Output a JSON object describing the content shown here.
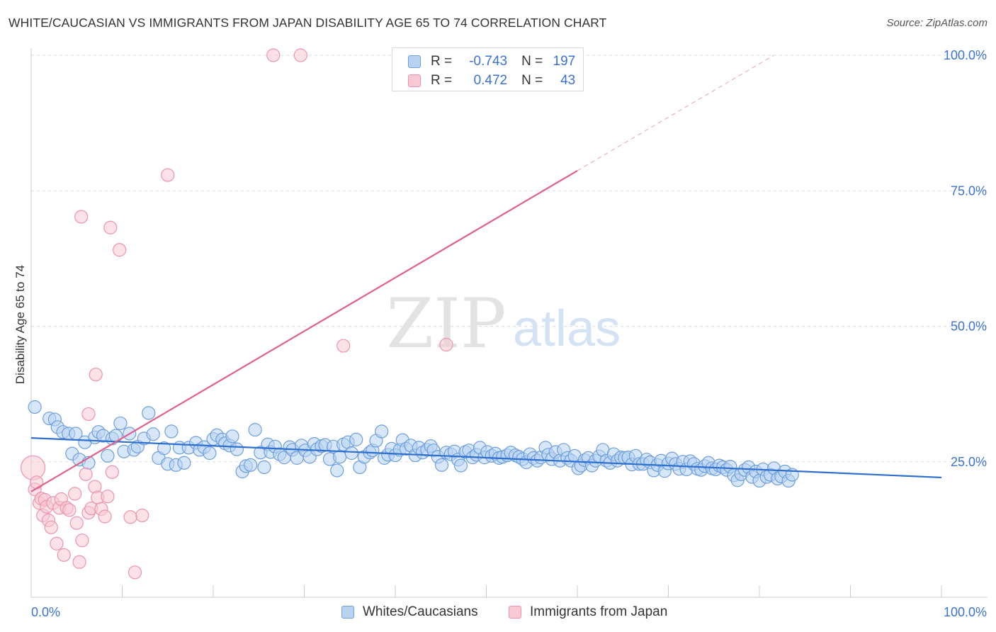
{
  "title": "WHITE/CAUCASIAN VS IMMIGRANTS FROM JAPAN DISABILITY AGE 65 TO 74 CORRELATION CHART",
  "source": "Source: ZipAtlas.com",
  "watermark": {
    "zip": "ZIP",
    "atlas": "atlas"
  },
  "colors": {
    "white_fill": "#b8d3f2",
    "white_stroke": "#6d9fdc",
    "white_line": "#2f6fce",
    "japan_fill": "#f8c8d6",
    "japan_stroke": "#ec93ae",
    "japan_line": "#e0608a",
    "axis_text": "#3b72d2",
    "grid": "#dddddd"
  },
  "stats": {
    "r_label": "R =",
    "n_label": "N =",
    "white": {
      "r": "-0.743",
      "n": "197"
    },
    "japan": {
      "r": "0.472",
      "n": "43"
    }
  },
  "legend": {
    "white": "Whites/Caucasians",
    "japan": "Immigrants from Japan"
  },
  "chart_data": {
    "type": "scatter",
    "title": "WHITE/CAUCASIAN VS IMMIGRANTS FROM JAPAN DISABILITY AGE 65 TO 74 CORRELATION CHART",
    "xlabel": "",
    "ylabel": "Disability Age 65 to 74",
    "xlim": [
      0,
      100
    ],
    "ylim": [
      0,
      100
    ],
    "x_tick_labels": [
      "0.0%",
      "100.0%"
    ],
    "y_ticks": [
      25,
      50,
      75,
      100
    ],
    "y_tick_labels": [
      "25.0%",
      "50.0%",
      "75.0%",
      "100.0%"
    ],
    "grid": true,
    "legend_position": "bottom",
    "series": [
      {
        "name": "Whites/Caucasians",
        "r": -0.743,
        "n": 197,
        "trend": {
          "x": [
            0,
            100
          ],
          "y": [
            29.4,
            22.1
          ]
        },
        "points": [
          [
            0.4,
            35.1
          ],
          [
            2,
            33
          ],
          [
            2.6,
            32.8
          ],
          [
            2.9,
            31.4
          ],
          [
            3.5,
            30.5
          ],
          [
            4.1,
            30.2
          ],
          [
            4.5,
            26.5
          ],
          [
            4.9,
            30.2
          ],
          [
            5.3,
            25.4
          ],
          [
            5.9,
            28.6
          ],
          [
            6.3,
            24.8
          ],
          [
            7,
            29.5
          ],
          [
            7.4,
            30.5
          ],
          [
            7.9,
            29.8
          ],
          [
            8.4,
            26.1
          ],
          [
            8.9,
            29.3
          ],
          [
            9.3,
            29.8
          ],
          [
            9.8,
            32.1
          ],
          [
            10.2,
            26.9
          ],
          [
            10.8,
            30.2
          ],
          [
            11.3,
            27.2
          ],
          [
            11.7,
            27.8
          ],
          [
            12.4,
            29.3
          ],
          [
            12.9,
            34
          ],
          [
            13.4,
            30.1
          ],
          [
            14,
            25.7
          ],
          [
            14.6,
            27.5
          ],
          [
            15,
            24.6
          ],
          [
            15.4,
            30.6
          ],
          [
            15.9,
            24.4
          ],
          [
            16.3,
            27.6
          ],
          [
            16.8,
            24.8
          ],
          [
            17.3,
            27.6
          ],
          [
            18.1,
            28.5
          ],
          [
            18.5,
            27.2
          ],
          [
            19,
            27.7
          ],
          [
            19.6,
            26.6
          ],
          [
            20,
            29.2
          ],
          [
            20.4,
            29.9
          ],
          [
            21,
            29.1
          ],
          [
            21.3,
            28.4
          ],
          [
            21.8,
            28
          ],
          [
            22.1,
            29.7
          ],
          [
            22.6,
            27.3
          ],
          [
            23.2,
            23.2
          ],
          [
            23.6,
            24.2
          ],
          [
            24.1,
            24.4
          ],
          [
            24.6,
            30.9
          ],
          [
            25.2,
            26.7
          ],
          [
            25.6,
            24
          ],
          [
            26,
            28.2
          ],
          [
            26.3,
            26.8
          ],
          [
            26.8,
            27.8
          ],
          [
            27.3,
            26.4
          ],
          [
            27.8,
            25.8
          ],
          [
            28.4,
            27.7
          ],
          [
            28.7,
            27.2
          ],
          [
            29.2,
            25.7
          ],
          [
            29.7,
            28
          ],
          [
            30.1,
            27.1
          ],
          [
            30.6,
            25.9
          ],
          [
            31.1,
            28.3
          ],
          [
            31.4,
            27.3
          ],
          [
            31.9,
            27.9
          ],
          [
            32.3,
            28.1
          ],
          [
            32.8,
            25.5
          ],
          [
            33.2,
            27.8
          ],
          [
            33.6,
            23.4
          ],
          [
            33.9,
            25.9
          ],
          [
            34.3,
            28.2
          ],
          [
            34.8,
            28.6
          ],
          [
            35.2,
            26.6
          ],
          [
            35.7,
            29.1
          ],
          [
            36.1,
            24
          ],
          [
            36.6,
            25.9
          ],
          [
            37.2,
            26.7
          ],
          [
            37.5,
            27.1
          ],
          [
            37.9,
            28.9
          ],
          [
            38.5,
            30.6
          ],
          [
            38.8,
            25.7
          ],
          [
            39.2,
            26.3
          ],
          [
            39.6,
            27.4
          ],
          [
            40,
            26.2
          ],
          [
            40.5,
            27.2
          ],
          [
            40.8,
            29
          ],
          [
            41.2,
            27.4
          ],
          [
            41.7,
            28
          ],
          [
            42.2,
            26.2
          ],
          [
            42.6,
            27.6
          ],
          [
            43,
            26.7
          ],
          [
            43.5,
            27.2
          ],
          [
            43.9,
            27.9
          ],
          [
            44.2,
            27.1
          ],
          [
            44.7,
            25.9
          ],
          [
            45.1,
            24.4
          ],
          [
            45.6,
            26.7
          ],
          [
            46.1,
            26.4
          ],
          [
            46.5,
            26.9
          ],
          [
            46.9,
            25.4
          ],
          [
            47.2,
            24.3
          ],
          [
            47.7,
            26.8
          ],
          [
            48.1,
            27.1
          ],
          [
            48.5,
            25.8
          ],
          [
            48.9,
            26.3
          ],
          [
            49.3,
            27.6
          ],
          [
            49.8,
            25.8
          ],
          [
            50.1,
            26.8
          ],
          [
            50.6,
            26.1
          ],
          [
            51,
            26.5
          ],
          [
            51.4,
            25.7
          ],
          [
            51.8,
            25.9
          ],
          [
            52.3,
            26.2
          ],
          [
            52.7,
            26.7
          ],
          [
            53.2,
            26.2
          ],
          [
            53.6,
            25.9
          ],
          [
            54,
            25.5
          ],
          [
            54.4,
            24.9
          ],
          [
            54.8,
            26.4
          ],
          [
            55.2,
            25.7
          ],
          [
            55.6,
            25.2
          ],
          [
            56,
            25.8
          ],
          [
            56.5,
            27.6
          ],
          [
            56.8,
            26.3
          ],
          [
            57.2,
            25.5
          ],
          [
            57.6,
            26.8
          ],
          [
            58.1,
            25.2
          ],
          [
            58.5,
            27.2
          ],
          [
            58.9,
            25.7
          ],
          [
            59.3,
            25.2
          ],
          [
            59.7,
            26.1
          ],
          [
            60.1,
            23.8
          ],
          [
            60.4,
            24.3
          ],
          [
            60.8,
            25.3
          ],
          [
            61.2,
            25.7
          ],
          [
            61.6,
            24.3
          ],
          [
            62,
            25.2
          ],
          [
            62.4,
            26
          ],
          [
            62.8,
            27.2
          ],
          [
            63.2,
            25.2
          ],
          [
            63.6,
            24.8
          ],
          [
            64,
            26.4
          ],
          [
            64.4,
            25.2
          ],
          [
            64.8,
            25.8
          ],
          [
            65.2,
            25.7
          ],
          [
            65.6,
            25.8
          ],
          [
            66,
            24.5
          ],
          [
            66.4,
            26.1
          ],
          [
            66.8,
            24.6
          ],
          [
            67.2,
            24.6
          ],
          [
            67.6,
            25.4
          ],
          [
            68,
            24.9
          ],
          [
            68.4,
            23.4
          ],
          [
            68.8,
            24.4
          ],
          [
            69.2,
            25.2
          ],
          [
            69.6,
            23.3
          ],
          [
            70,
            24.7
          ],
          [
            70.4,
            25.6
          ],
          [
            70.8,
            24.6
          ],
          [
            71.2,
            23.7
          ],
          [
            71.6,
            25
          ],
          [
            72,
            23.6
          ],
          [
            72.4,
            25.1
          ],
          [
            72.8,
            24.6
          ],
          [
            73.2,
            23.7
          ],
          [
            73.6,
            23.5
          ],
          [
            74,
            24.2
          ],
          [
            74.4,
            24.8
          ],
          [
            74.8,
            23.8
          ],
          [
            75.2,
            23.6
          ],
          [
            75.6,
            24.3
          ],
          [
            76,
            24
          ],
          [
            76.4,
            23.5
          ],
          [
            76.8,
            24.1
          ],
          [
            77.2,
            22.5
          ],
          [
            77.6,
            21.6
          ],
          [
            78,
            22.7
          ],
          [
            78.4,
            23.5
          ],
          [
            78.8,
            24
          ],
          [
            79.2,
            22.2
          ],
          [
            79.6,
            23.2
          ],
          [
            80,
            21.5
          ],
          [
            80.4,
            23.6
          ],
          [
            80.8,
            22.2
          ],
          [
            81.2,
            22.6
          ],
          [
            81.6,
            23.8
          ],
          [
            82,
            21.9
          ],
          [
            82.4,
            22.3
          ],
          [
            82.8,
            23.2
          ],
          [
            83.2,
            21.5
          ],
          [
            83.6,
            22.6
          ]
        ]
      },
      {
        "name": "Immigrants from Japan",
        "r": 0.472,
        "n": 43,
        "trend": {
          "x": [
            0,
            60
          ],
          "y": [
            19.5,
            78.7
          ]
        },
        "points": [
          [
            0.2,
            23.9
          ],
          [
            0.4,
            19.9
          ],
          [
            0.6,
            21.2
          ],
          [
            0.9,
            17.4
          ],
          [
            1.1,
            18.2
          ],
          [
            1.3,
            15.1
          ],
          [
            1.5,
            18
          ],
          [
            1.7,
            16.7
          ],
          [
            1.9,
            14.2
          ],
          [
            2.2,
            12.9
          ],
          [
            2.4,
            17.4
          ],
          [
            2.8,
            9.9
          ],
          [
            3.1,
            16.5
          ],
          [
            3.3,
            18.1
          ],
          [
            3.6,
            7.8
          ],
          [
            3.9,
            16.5
          ],
          [
            4.2,
            16.1
          ],
          [
            4.8,
            19.1
          ],
          [
            5,
            13.7
          ],
          [
            5.3,
            6.5
          ],
          [
            5.6,
            10.5
          ],
          [
            6,
            22.7
          ],
          [
            6.3,
            15.6
          ],
          [
            6.6,
            16.4
          ],
          [
            7,
            20.4
          ],
          [
            7.3,
            18.4
          ],
          [
            7.7,
            16.3
          ],
          [
            8.1,
            14.9
          ],
          [
            8.4,
            18.6
          ],
          [
            8.9,
            23.1
          ],
          [
            6.3,
            33.8
          ],
          [
            7.1,
            41.1
          ],
          [
            5.5,
            70.2
          ],
          [
            8.7,
            68.2
          ],
          [
            9.7,
            64.1
          ],
          [
            15,
            77.9
          ],
          [
            12.2,
            15.1
          ],
          [
            10.9,
            14.8
          ],
          [
            11.4,
            4.6
          ],
          [
            26.6,
            100
          ],
          [
            29.6,
            100
          ],
          [
            34.3,
            46.4
          ],
          [
            45.6,
            46.6
          ]
        ]
      }
    ]
  }
}
